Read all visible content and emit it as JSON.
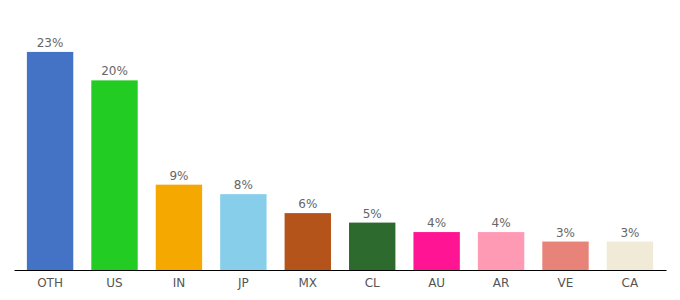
{
  "chart_data": {
    "type": "bar",
    "categories": [
      "OTH",
      "US",
      "IN",
      "JP",
      "MX",
      "CL",
      "AU",
      "AR",
      "VE",
      "CA"
    ],
    "values": [
      23,
      20,
      9,
      8,
      6,
      5,
      4,
      4,
      3,
      3
    ],
    "value_labels": [
      "23%",
      "20%",
      "9%",
      "8%",
      "6%",
      "5%",
      "4%",
      "4%",
      "3%",
      "3%"
    ],
    "colors": [
      "#4472c4",
      "#22cc22",
      "#f5a800",
      "#87ceeb",
      "#b5541a",
      "#2d6a2d",
      "#ff1493",
      "#ff9ab5",
      "#e8837a",
      "#f0ead6"
    ],
    "ylim": [
      0,
      27
    ],
    "data_labels": true,
    "tick_labels": "x",
    "grid": false
  }
}
